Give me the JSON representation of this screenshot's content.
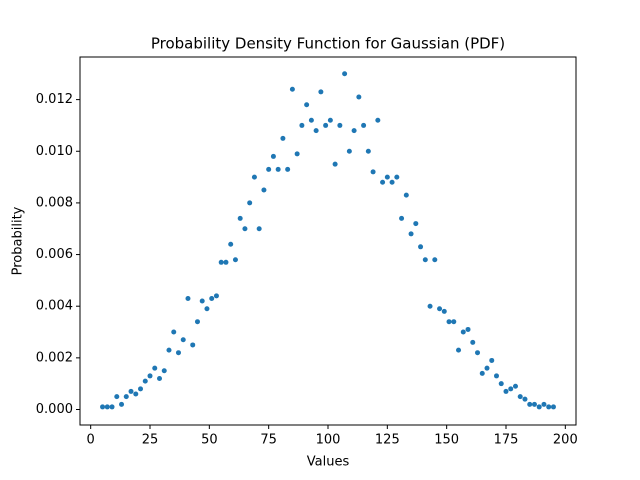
{
  "chart_data": {
    "type": "scatter",
    "title": "Probability Density Function for Gaussian (PDF)",
    "x_label": "Values",
    "y_label": "Probability",
    "color": "#1f77b4",
    "x": [
      5,
      7,
      9,
      11,
      13,
      15,
      17,
      19,
      21,
      23,
      25,
      27,
      29,
      31,
      33,
      35,
      37,
      39,
      41,
      43,
      45,
      47,
      49,
      51,
      53,
      55,
      57,
      59,
      61,
      63,
      65,
      67,
      69,
      71,
      73,
      75,
      77,
      79,
      81,
      83,
      85,
      87,
      89,
      91,
      93,
      95,
      97,
      99,
      101,
      103,
      105,
      107,
      109,
      111,
      113,
      115,
      117,
      119,
      121,
      123,
      125,
      127,
      129,
      131,
      133,
      135,
      137,
      139,
      141,
      143,
      145,
      147,
      149,
      151,
      153,
      155,
      157,
      159,
      161,
      163,
      165,
      167,
      169,
      171,
      173,
      175,
      177,
      179,
      181,
      183,
      185,
      187,
      189,
      191,
      193,
      195
    ],
    "values": [
      0.0001,
      0.0001,
      0.0001,
      0.0005,
      0.0002,
      0.0005,
      0.0007,
      0.0006,
      0.0008,
      0.0011,
      0.0013,
      0.0016,
      0.0012,
      0.0015,
      0.0023,
      0.003,
      0.0022,
      0.0027,
      0.0043,
      0.0025,
      0.0034,
      0.0042,
      0.0039,
      0.0043,
      0.0044,
      0.0057,
      0.0057,
      0.0064,
      0.0058,
      0.0074,
      0.007,
      0.008,
      0.009,
      0.007,
      0.0085,
      0.0093,
      0.0098,
      0.0093,
      0.0105,
      0.0093,
      0.0124,
      0.0099,
      0.011,
      0.0118,
      0.0112,
      0.0108,
      0.0123,
      0.011,
      0.0112,
      0.0095,
      0.011,
      0.013,
      0.01,
      0.0108,
      0.0121,
      0.011,
      0.01,
      0.0092,
      0.0112,
      0.0088,
      0.009,
      0.0088,
      0.009,
      0.0074,
      0.0083,
      0.0068,
      0.0072,
      0.0063,
      0.0058,
      0.004,
      0.0058,
      0.0039,
      0.0038,
      0.0034,
      0.0034,
      0.0023,
      0.003,
      0.0031,
      0.0026,
      0.0022,
      0.0014,
      0.0016,
      0.0019,
      0.0013,
      0.001,
      0.0007,
      0.0008,
      0.0009,
      0.0005,
      0.0004,
      0.0002,
      0.0002,
      0.0001,
      0.0002,
      0.0001,
      0.0001
    ],
    "xlim": [
      -4.5,
      204.5
    ],
    "xticks": [
      0,
      25,
      50,
      75,
      100,
      125,
      150,
      175,
      200
    ],
    "ylim": [
      -0.0006,
      0.01365
    ],
    "yticks": [
      {
        "value": 0,
        "label": "0.000"
      },
      {
        "value": 0.002,
        "label": "0.002"
      },
      {
        "value": 0.004,
        "label": "0.004"
      },
      {
        "value": 0.006,
        "label": "0.006"
      },
      {
        "value": 0.008,
        "label": "0.008"
      },
      {
        "value": 0.01,
        "label": "0.010"
      },
      {
        "value": 0.012,
        "label": "0.012"
      }
    ]
  }
}
